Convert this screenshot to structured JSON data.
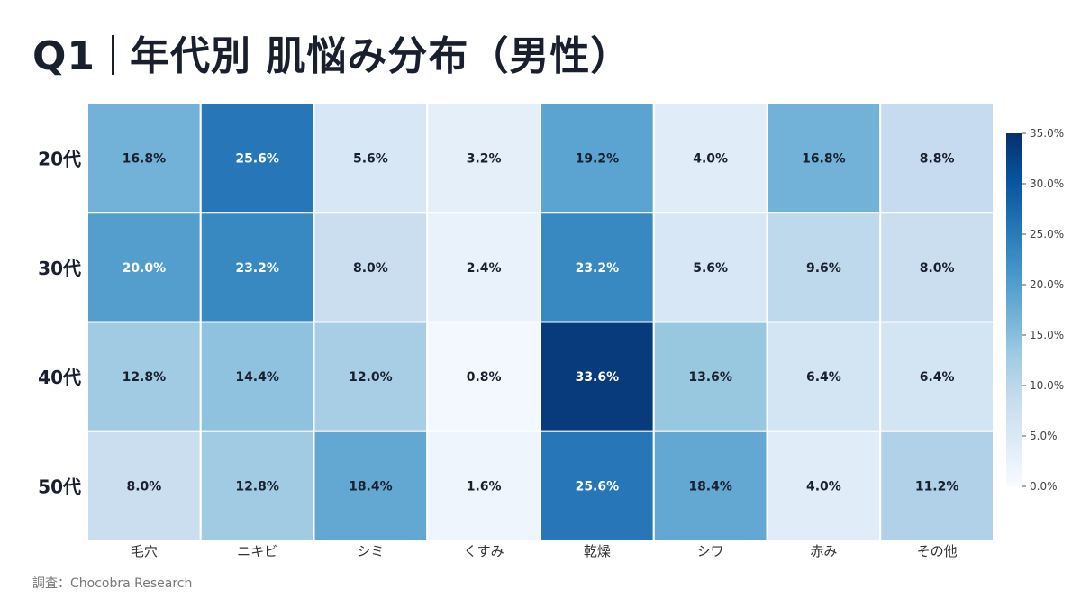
{
  "title": {
    "prefix": "Q1",
    "text": "年代別 肌悩み分布（男性）"
  },
  "source": "調査：Chocobra Research",
  "chart_data": {
    "type": "heatmap",
    "title": "Q1｜年代別 肌悩み分布（男性）",
    "rows": [
      "20代",
      "30代",
      "40代",
      "50代"
    ],
    "columns": [
      "毛穴",
      "ニキビ",
      "シミ",
      "くすみ",
      "乾燥",
      "シワ",
      "赤み",
      "その他"
    ],
    "values": [
      [
        16.8,
        25.6,
        5.6,
        3.2,
        19.2,
        4.0,
        16.8,
        8.8
      ],
      [
        20.0,
        23.2,
        8.0,
        2.4,
        23.2,
        5.6,
        9.6,
        8.0
      ],
      [
        12.8,
        14.4,
        12.0,
        0.8,
        33.6,
        13.6,
        6.4,
        6.4
      ],
      [
        8.0,
        12.8,
        18.4,
        1.6,
        25.6,
        18.4,
        4.0,
        11.2
      ]
    ],
    "unit": "%",
    "colormap": "Blues",
    "color_range": [
      0,
      35
    ],
    "colorbar_ticks": [
      "0.0%",
      "5.0%",
      "10.0%",
      "15.0%",
      "20.0%",
      "25.0%",
      "30.0%",
      "35.0%"
    ],
    "colorbar_tick_values": [
      0,
      5,
      10,
      15,
      20,
      25,
      30,
      35
    ],
    "colorbar_placement": "right",
    "colors": [
      "#f7fbff",
      "#deebf7",
      "#c6dbef",
      "#9ecae1",
      "#6baed6",
      "#4292c6",
      "#2171b5",
      "#08519c",
      "#08306b"
    ]
  }
}
